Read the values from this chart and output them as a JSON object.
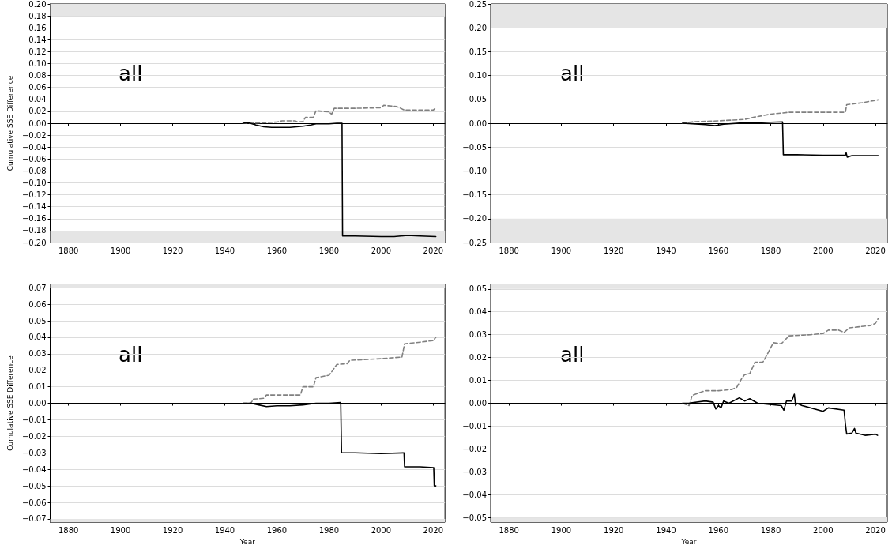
{
  "chart_data": [
    {
      "type": "line",
      "ylabel": "Cumulative SSE Difference",
      "annotations": [
        "all"
      ],
      "grid": "y",
      "xlim": [
        1873,
        2024.5
      ],
      "xticks": [
        1880,
        1900,
        1920,
        1940,
        1960,
        1980,
        2000,
        2020
      ],
      "ylim": [
        -0.2,
        0.2
      ],
      "yticks": [
        {
          "value": -0.2,
          "label": "−0.20"
        },
        {
          "value": -0.18,
          "label": "−0.18"
        },
        {
          "value": -0.16,
          "label": "−0.16"
        },
        {
          "value": -0.14,
          "label": "−0.14"
        },
        {
          "value": -0.12,
          "label": "−0.12"
        },
        {
          "value": -0.1,
          "label": "−0.10"
        },
        {
          "value": -0.08,
          "label": "−0.08"
        },
        {
          "value": -0.06,
          "label": "−0.06"
        },
        {
          "value": -0.04,
          "label": "−0.04"
        },
        {
          "value": -0.02,
          "label": "−0.02"
        },
        {
          "value": 0,
          "label": "0.00"
        },
        {
          "value": 0.02,
          "label": "0.02"
        },
        {
          "value": 0.04,
          "label": "0.04"
        },
        {
          "value": 0.06,
          "label": "0.06"
        },
        {
          "value": 0.08,
          "label": "0.08"
        },
        {
          "value": 0.1,
          "label": "0.10"
        },
        {
          "value": 0.12,
          "label": "0.12"
        },
        {
          "value": 0.14,
          "label": "0.14"
        },
        {
          "value": 0.16,
          "label": "0.16"
        },
        {
          "value": 0.18,
          "label": "0.18"
        },
        {
          "value": 0.2,
          "label": "0.20"
        }
      ],
      "bands": [
        {
          "axis": "y",
          "from": 0.18,
          "to": 0.2,
          "color": "#e5e5e5"
        },
        {
          "axis": "y",
          "from": -0.2,
          "to": -0.18,
          "color": "#e5e5e5"
        }
      ],
      "series": [
        {
          "color": "#808080",
          "line_style": "dashed",
          "x": [
            1947,
            1950,
            1955,
            1960,
            1962,
            1967,
            1968,
            1970,
            1971,
            1974,
            1975,
            1980,
            1981,
            1982,
            1990,
            2000,
            2001,
            2006,
            2009,
            2015,
            2020,
            2021
          ],
          "values": [
            0,
            0,
            0.001,
            0.002,
            0.004,
            0.004,
            0.002,
            0.003,
            0.01,
            0.01,
            0.021,
            0.019,
            0.015,
            0.025,
            0.025,
            0.026,
            0.03,
            0.028,
            0.022,
            0.022,
            0.022,
            0.026
          ]
        },
        {
          "color": "#000000",
          "line_style": "solid",
          "x": [
            1947,
            1949,
            1952,
            1955,
            1958,
            1960,
            1965,
            1970,
            1973,
            1975,
            1980,
            1983,
            1985,
            1985.2,
            1990,
            2000,
            2005,
            2010,
            2015,
            2021
          ],
          "values": [
            0,
            0.001,
            -0.003,
            -0.006,
            -0.007,
            -0.007,
            -0.007,
            -0.005,
            -0.003,
            -0.001,
            -0.001,
            0,
            0,
            -0.189,
            -0.189,
            -0.19,
            -0.19,
            -0.188,
            -0.189,
            -0.19
          ]
        }
      ]
    },
    {
      "type": "line",
      "annotations": [
        "all"
      ],
      "grid": "y",
      "xlim": [
        1873,
        2024.5
      ],
      "xticks": [
        1880,
        1900,
        1920,
        1940,
        1960,
        1980,
        2000,
        2020
      ],
      "ylim": [
        -0.25,
        0.25
      ],
      "yticks": [
        {
          "value": -0.25,
          "label": "−0.25"
        },
        {
          "value": -0.2,
          "label": "−0.20"
        },
        {
          "value": -0.15,
          "label": "−0.15"
        },
        {
          "value": -0.1,
          "label": "−0.10"
        },
        {
          "value": -0.05,
          "label": "−0.05"
        },
        {
          "value": 0,
          "label": "0.00"
        },
        {
          "value": 0.05,
          "label": "0.05"
        },
        {
          "value": 0.1,
          "label": "0.10"
        },
        {
          "value": 0.15,
          "label": "0.15"
        },
        {
          "value": 0.2,
          "label": "0.20"
        },
        {
          "value": 0.25,
          "label": "0.25"
        }
      ],
      "bands": [
        {
          "axis": "y",
          "from": 0.2,
          "to": 0.25,
          "color": "#e5e5e5"
        },
        {
          "axis": "y",
          "from": -0.25,
          "to": -0.2,
          "color": "#e5e5e5"
        }
      ],
      "series": [
        {
          "color": "#808080",
          "line_style": "dashed",
          "x": [
            1946.3,
            1950,
            1960,
            1970,
            1974,
            1980,
            1987,
            2000,
            2008.5,
            2009,
            2015,
            2021
          ],
          "values": [
            0,
            0.003,
            0.005,
            0.008,
            0.013,
            0.019,
            0.023,
            0.023,
            0.023,
            0.039,
            0.043,
            0.049
          ]
        },
        {
          "color": "#000000",
          "line_style": "solid",
          "x": [
            1946.3,
            1950,
            1955,
            1958.7,
            1962,
            1970,
            1975,
            1980,
            1984.5,
            1984.8,
            1990,
            2000,
            2008.5,
            2008.8,
            2009.2,
            2011,
            2015,
            2021
          ],
          "values": [
            0,
            -0.001,
            -0.003,
            -0.005,
            -0.002,
            0.001,
            0.001,
            0.002,
            0.003,
            -0.066,
            -0.066,
            -0.067,
            -0.067,
            -0.062,
            -0.071,
            -0.068,
            -0.068,
            -0.068
          ]
        }
      ]
    },
    {
      "type": "line",
      "xlabel": "Year",
      "ylabel": "Cumulative SSE Difference",
      "annotations": [
        "all"
      ],
      "grid": "y",
      "xlim": [
        1873,
        2024.5
      ],
      "xticks": [
        1880,
        1900,
        1920,
        1940,
        1960,
        1980,
        2000,
        2020
      ],
      "ylim": [
        -0.072,
        0.072
      ],
      "yticks": [
        {
          "value": -0.07,
          "label": "−0.07"
        },
        {
          "value": -0.06,
          "label": "−0.06"
        },
        {
          "value": -0.05,
          "label": "−0.05"
        },
        {
          "value": -0.04,
          "label": "−0.04"
        },
        {
          "value": -0.03,
          "label": "−0.03"
        },
        {
          "value": -0.02,
          "label": "−0.02"
        },
        {
          "value": -0.01,
          "label": "−0.01"
        },
        {
          "value": 0,
          "label": "0.00"
        },
        {
          "value": 0.01,
          "label": "0.01"
        },
        {
          "value": 0.02,
          "label": "0.02"
        },
        {
          "value": 0.03,
          "label": "0.03"
        },
        {
          "value": 0.04,
          "label": "0.04"
        },
        {
          "value": 0.05,
          "label": "0.05"
        },
        {
          "value": 0.06,
          "label": "0.06"
        },
        {
          "value": 0.07,
          "label": "0.07"
        }
      ],
      "bands": [
        {
          "axis": "y",
          "from": 0.07,
          "to": 0.072,
          "color": "#e5e5e5"
        },
        {
          "axis": "y",
          "from": -0.072,
          "to": -0.07,
          "color": "#e5e5e5"
        }
      ],
      "series": [
        {
          "color": "#808080",
          "line_style": "dashed",
          "x": [
            1947,
            1950,
            1951,
            1955,
            1956,
            1965,
            1969,
            1970,
            1974,
            1975,
            1980,
            1981,
            1983,
            1987,
            1988,
            2000,
            2008,
            2009,
            2015,
            2020,
            2021
          ],
          "values": [
            0,
            0,
            0.0025,
            0.003,
            0.005,
            0.005,
            0.005,
            0.01,
            0.01,
            0.0155,
            0.017,
            0.019,
            0.0235,
            0.024,
            0.026,
            0.027,
            0.028,
            0.036,
            0.037,
            0.038,
            0.04
          ]
        },
        {
          "color": "#000000",
          "line_style": "solid",
          "x": [
            1947,
            1950,
            1953,
            1956,
            1960,
            1965,
            1970,
            1975,
            1980,
            1984.5,
            1984.8,
            1990,
            2000,
            2008.8,
            2009,
            2015,
            2020.2,
            2020.4,
            2021
          ],
          "values": [
            0,
            0,
            -0.001,
            -0.002,
            -0.0015,
            -0.0015,
            -0.001,
            0,
            0,
            0.0005,
            -0.03,
            -0.03,
            -0.0305,
            -0.03,
            -0.0385,
            -0.0385,
            -0.039,
            -0.05,
            -0.05
          ]
        }
      ]
    },
    {
      "type": "line",
      "xlabel": "Year",
      "annotations": [
        "all"
      ],
      "grid": "y",
      "xlim": [
        1873,
        2024.5
      ],
      "xticks": [
        1880,
        1900,
        1920,
        1940,
        1960,
        1980,
        2000,
        2020
      ],
      "ylim": [
        -0.052,
        0.052
      ],
      "yticks": [
        {
          "value": -0.05,
          "label": "−0.05"
        },
        {
          "value": -0.04,
          "label": "−0.04"
        },
        {
          "value": -0.03,
          "label": "−0.03"
        },
        {
          "value": -0.02,
          "label": "−0.02"
        },
        {
          "value": -0.01,
          "label": "−0.01"
        },
        {
          "value": 0,
          "label": "0.00"
        },
        {
          "value": 0.01,
          "label": "0.01"
        },
        {
          "value": 0.02,
          "label": "0.02"
        },
        {
          "value": 0.03,
          "label": "0.03"
        },
        {
          "value": 0.04,
          "label": "0.04"
        },
        {
          "value": 0.05,
          "label": "0.05"
        }
      ],
      "bands": [
        {
          "axis": "y",
          "from": 0.05,
          "to": 0.052,
          "color": "#e5e5e5"
        },
        {
          "axis": "y",
          "from": -0.052,
          "to": -0.05,
          "color": "#e5e5e5"
        }
      ],
      "series": [
        {
          "color": "#808080",
          "line_style": "dashed",
          "x": [
            1946.3,
            1948.8,
            1950,
            1955,
            1960,
            1965,
            1967,
            1969,
            1970,
            1972,
            1974,
            1977,
            1978,
            1981,
            1984,
            1987,
            1995,
            2000,
            2002,
            2006,
            2008,
            2010,
            2018,
            2020,
            2021
          ],
          "values": [
            0,
            -0.001,
            0.0035,
            0.0055,
            0.0055,
            0.006,
            0.007,
            0.011,
            0.0125,
            0.013,
            0.018,
            0.018,
            0.02,
            0.0265,
            0.026,
            0.0295,
            0.03,
            0.0305,
            0.032,
            0.032,
            0.031,
            0.033,
            0.034,
            0.035,
            0.037
          ]
        },
        {
          "color": "#000000",
          "line_style": "solid",
          "x": [
            1946.3,
            1949,
            1950,
            1955,
            1958,
            1959,
            1960,
            1961,
            1962,
            1964,
            1968,
            1970,
            1972,
            1975,
            1984,
            1985,
            1986,
            1988,
            1989,
            1989.5,
            1990,
            1992,
            2000,
            2002,
            2008,
            2008.5,
            2009,
            2011,
            2012,
            2012.5,
            2016,
            2020,
            2020.8
          ],
          "values": [
            0,
            0,
            0.0003,
            0.001,
            0.0005,
            -0.0025,
            -0.001,
            -0.002,
            0.001,
            0,
            0.0024,
            0.001,
            0.002,
            0,
            -0.001,
            -0.003,
            0.001,
            0.001,
            0.004,
            -0.001,
            0,
            -0.001,
            -0.0035,
            -0.002,
            -0.003,
            -0.009,
            -0.0134,
            -0.013,
            -0.011,
            -0.013,
            -0.014,
            -0.0135,
            -0.014
          ]
        }
      ]
    }
  ]
}
